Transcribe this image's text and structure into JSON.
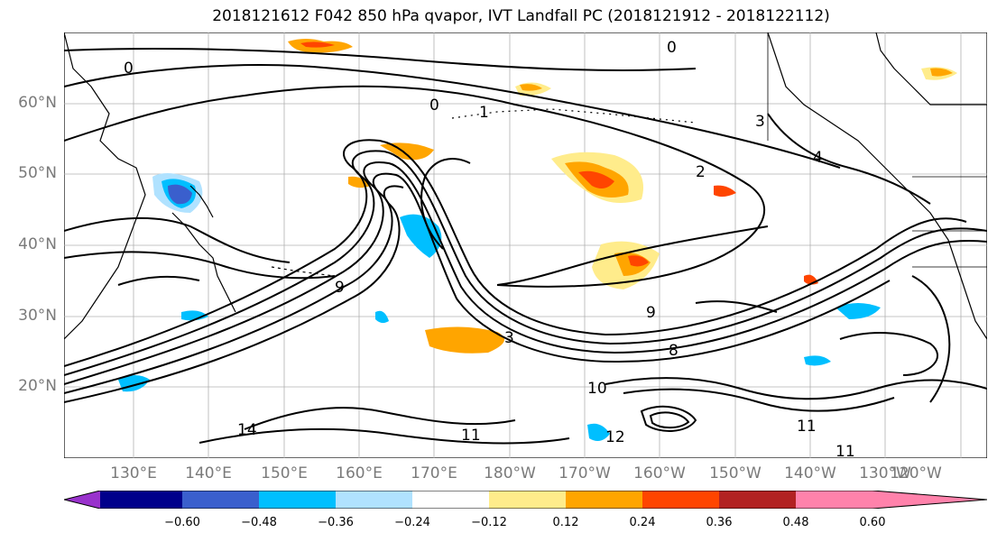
{
  "title": "2018121612 F042 850 hPa qvapor, IVT Landfall PC (2018121912 - 2018122112)",
  "map": {
    "latitude_labels": [
      "60°N",
      "50°N",
      "40°N",
      "30°N",
      "20°N"
    ],
    "longitude_labels": [
      "130°E",
      "140°E",
      "150°E",
      "160°E",
      "170°E",
      "180°W",
      "170°W",
      "160°W",
      "150°W",
      "140°W",
      "130°W",
      "120°W"
    ],
    "contour_labels": [
      "0",
      "0",
      "0",
      "1",
      "2",
      "3",
      "4",
      "9",
      "9",
      "10",
      "11",
      "11",
      "12",
      "14",
      "11",
      "8",
      "3"
    ],
    "contour_color": "#000000",
    "coastline_color": "#000000"
  },
  "colorbar": {
    "ticks": [
      "−0.60",
      "−0.48",
      "−0.36",
      "−0.24",
      "−0.12",
      "0.12",
      "0.24",
      "0.36",
      "0.48",
      "0.60"
    ],
    "colors": [
      "#9932cc",
      "#00008b",
      "#3a5fcd",
      "#00bfff",
      "#b0e2ff",
      "#ffffff",
      "#ffec8b",
      "#ffa500",
      "#ff4500",
      "#b22222",
      "#ff82ab"
    ]
  }
}
